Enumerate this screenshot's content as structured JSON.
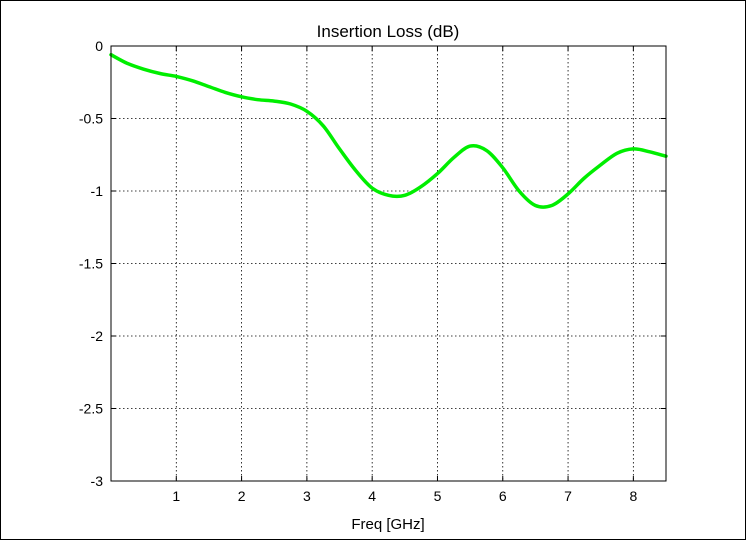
{
  "chart_data": {
    "type": "line",
    "title": "Insertion Loss (dB)",
    "xlabel": "Freq [GHz]",
    "ylabel": "",
    "xlim": [
      0,
      8.5
    ],
    "ylim": [
      -3,
      0
    ],
    "xticks": [
      1,
      2,
      3,
      4,
      5,
      6,
      7,
      8
    ],
    "xtick_labels": [
      "1",
      "2",
      "3",
      "4",
      "5",
      "6",
      "7",
      "8"
    ],
    "yticks": [
      0,
      -0.5,
      -1,
      -1.5,
      -2,
      -2.5,
      -3
    ],
    "ytick_labels": [
      "0",
      "-0.5",
      "-1",
      "-1.5",
      "-2",
      "-2.5",
      "-3"
    ],
    "grid": true,
    "grid_style": "dotted",
    "line_color": "#00ee00",
    "series": [
      {
        "x": [
          0,
          0.25,
          0.5,
          0.75,
          1.0,
          1.25,
          1.5,
          1.75,
          2.0,
          2.25,
          2.5,
          2.75,
          3.0,
          3.25,
          3.5,
          3.75,
          4.0,
          4.25,
          4.5,
          4.75,
          5.0,
          5.25,
          5.5,
          5.75,
          6.0,
          6.25,
          6.5,
          6.75,
          7.0,
          7.25,
          7.5,
          7.75,
          8.0,
          8.25,
          8.5
        ],
        "y": [
          -0.06,
          -0.12,
          -0.16,
          -0.19,
          -0.21,
          -0.24,
          -0.28,
          -0.32,
          -0.35,
          -0.37,
          -0.38,
          -0.4,
          -0.45,
          -0.55,
          -0.71,
          -0.86,
          -0.98,
          -1.03,
          -1.03,
          -0.97,
          -0.88,
          -0.77,
          -0.69,
          -0.72,
          -0.84,
          -1.0,
          -1.1,
          -1.1,
          -1.02,
          -0.91,
          -0.82,
          -0.74,
          -0.71,
          -0.73,
          -0.76
        ]
      }
    ]
  }
}
